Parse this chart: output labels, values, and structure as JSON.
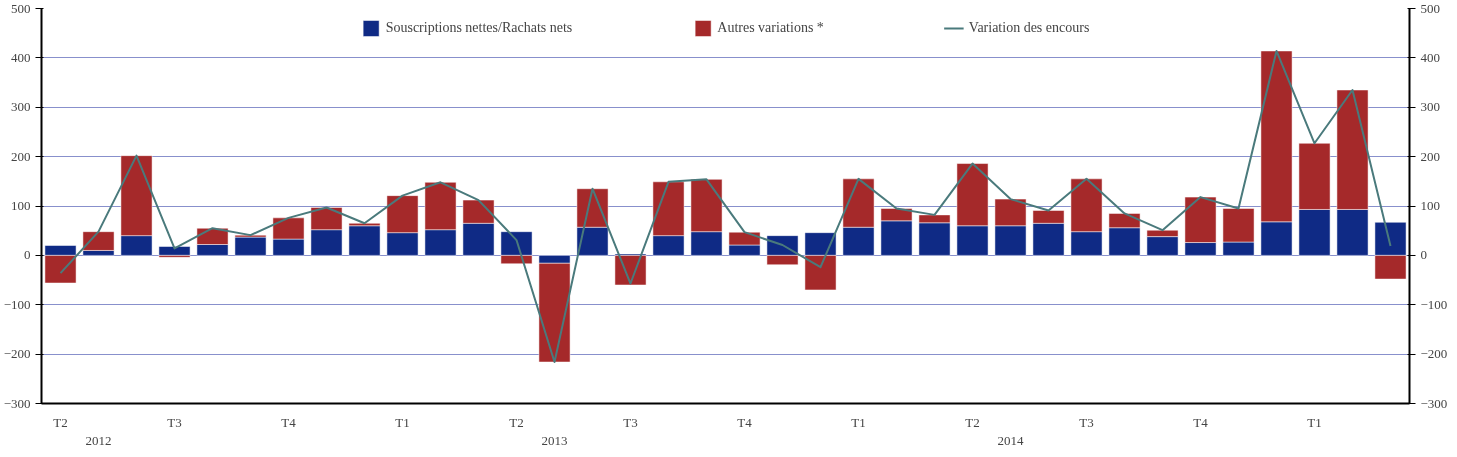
{
  "chart_data": {
    "type": "bar",
    "stacked": true,
    "categories": [
      "T2",
      null,
      null,
      "T3",
      null,
      null,
      "T4",
      null,
      null,
      "T1",
      null,
      null,
      "T2",
      null,
      null,
      "T3",
      null,
      null,
      "T4",
      null,
      null,
      "T1",
      null,
      null,
      "T2",
      null,
      null,
      "T3",
      null,
      null,
      "T4",
      null,
      null,
      "T1",
      null,
      null
    ],
    "series": [
      {
        "name": "Souscriptions nettes/Rachats nets",
        "color": "#0f2a85",
        "values": [
          20,
          10,
          40,
          18,
          22,
          37,
          33,
          52,
          60,
          46,
          52,
          65,
          48,
          -16,
          57,
          3,
          40,
          48,
          21,
          40,
          46,
          57,
          70,
          66,
          60,
          60,
          65,
          48,
          56,
          38,
          26,
          27,
          68,
          93,
          93,
          67
        ]
      },
      {
        "name": "Autres variations *",
        "color": "#a5292a",
        "values": [
          -56,
          38,
          162,
          -4,
          33,
          4,
          43,
          45,
          5,
          75,
          96,
          47,
          -17,
          -200,
          78,
          -60,
          109,
          106,
          26,
          -19,
          -70,
          98,
          25,
          16,
          126,
          54,
          26,
          107,
          29,
          13,
          92,
          68,
          346,
          134,
          242,
          -48
        ]
      },
      {
        "name": "Variation des encours",
        "type": "line",
        "color": "#4a7a7c",
        "values": [
          -36,
          48,
          202,
          14,
          55,
          41,
          76,
          97,
          65,
          121,
          148,
          112,
          31,
          -216,
          135,
          -57,
          149,
          154,
          47,
          21,
          -24,
          155,
          95,
          82,
          186,
          114,
          91,
          155,
          85,
          51,
          118,
          95,
          414,
          227,
          335,
          19
        ]
      }
    ],
    "ylim": [
      -300,
      500
    ],
    "yticks": [
      -300,
      -200,
      -100,
      0,
      100,
      200,
      300,
      400,
      500
    ],
    "y2lim": [
      -300,
      500
    ],
    "y2ticks": [
      -300,
      -200,
      -100,
      0,
      100,
      200,
      300,
      400,
      500
    ],
    "grid": "y",
    "legend": "top",
    "annotations": [
      "2012",
      "2013",
      "2014"
    ]
  }
}
